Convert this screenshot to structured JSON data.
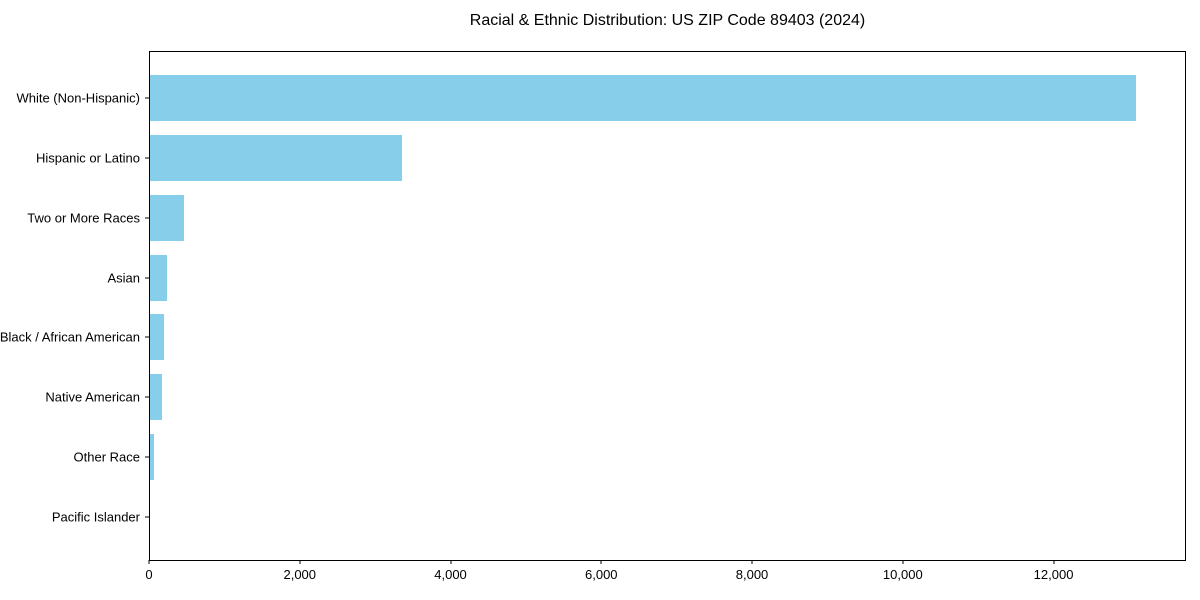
{
  "title": "Racial & Ethnic Distribution: US ZIP Code 89403 (2024)",
  "chart_data": {
    "type": "bar",
    "orientation": "horizontal",
    "title": "Racial & Ethnic Distribution: US ZIP Code 89403 (2024)",
    "xlabel": "",
    "ylabel": "",
    "categories": [
      "White (Non-Hispanic)",
      "Hispanic or Latino",
      "Two or More Races",
      "Asian",
      "Black / African American",
      "Native American",
      "Other Race",
      "Pacific Islander"
    ],
    "values": [
      13100,
      3350,
      455,
      220,
      180,
      165,
      55,
      0
    ],
    "xlim": [
      0,
      13757
    ],
    "x_ticks": [
      0,
      2000,
      4000,
      6000,
      8000,
      10000,
      12000
    ],
    "x_tick_labels": [
      "0",
      "2,000",
      "4,000",
      "6,000",
      "8,000",
      "10,000",
      "12,000"
    ],
    "bar_color": "#87CEEB",
    "background_color": "#ffffff",
    "spine_color": "#000000",
    "grid": false,
    "legend": null
  }
}
